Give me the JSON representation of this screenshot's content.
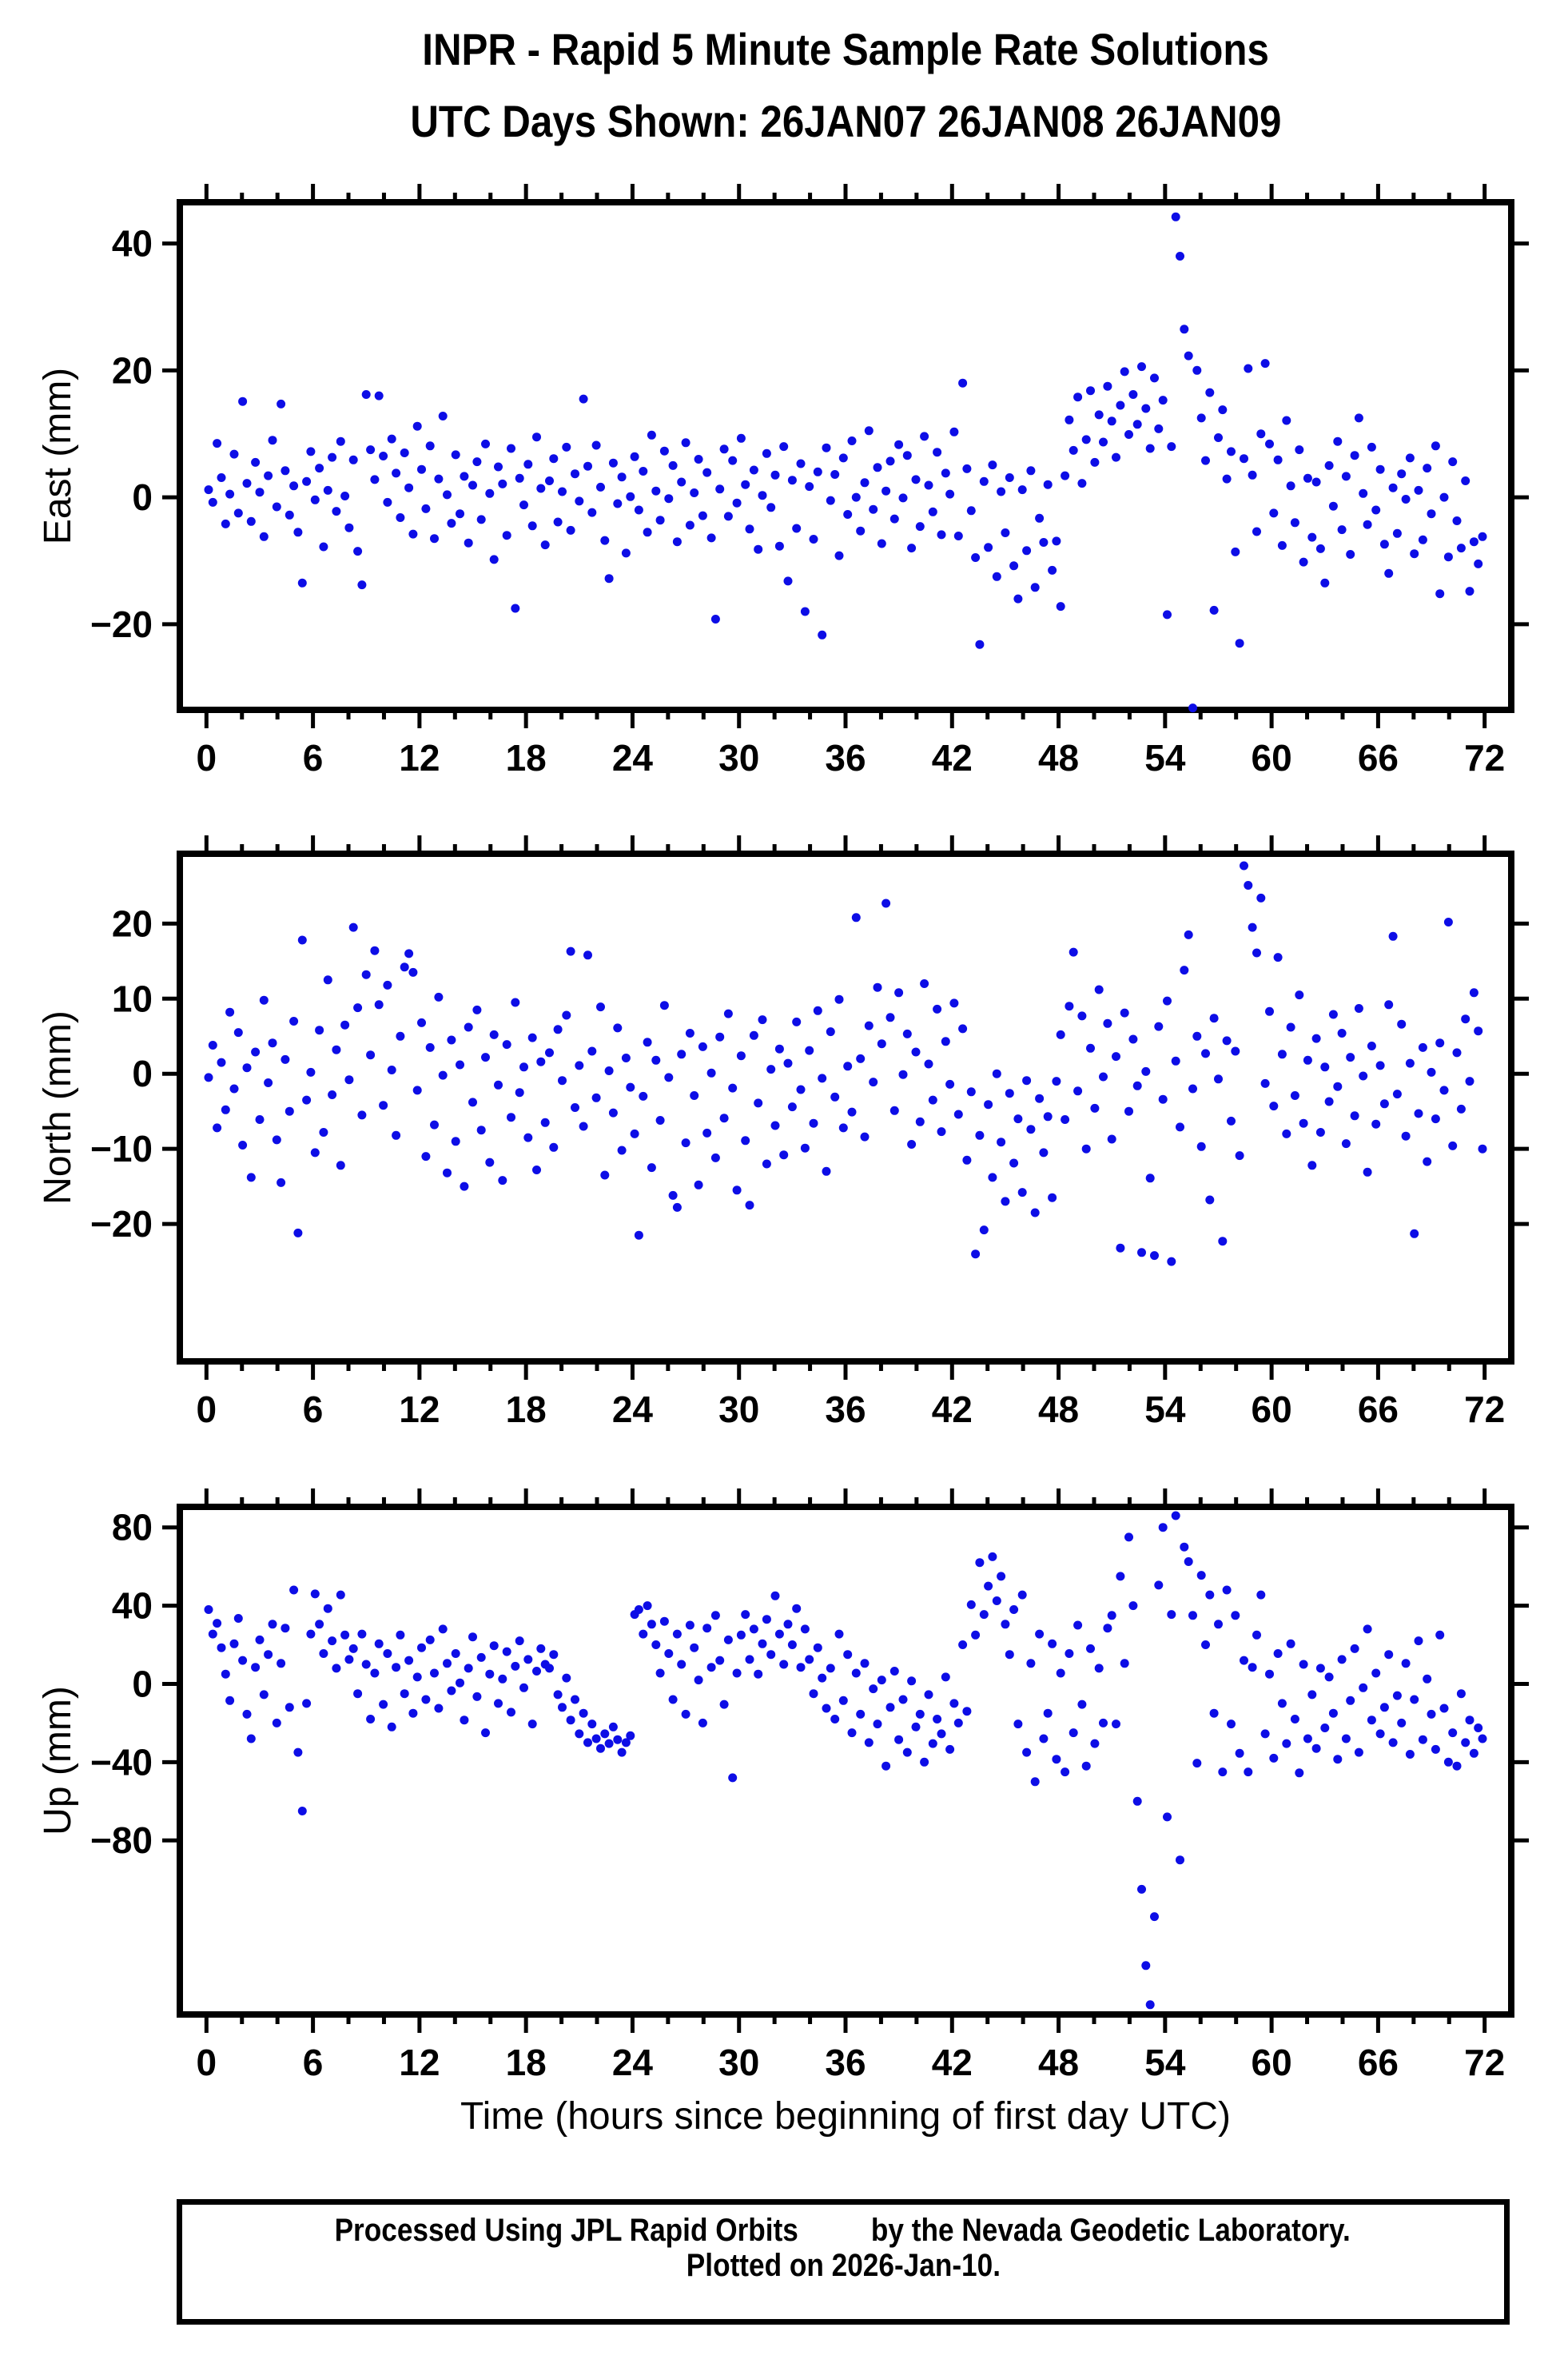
{
  "header": {
    "title": "INPR - Rapid 5 Minute Sample Rate Solutions",
    "subtitle": "UTC Days Shown:  26JAN07 26JAN08 26JAN09"
  },
  "footer": {
    "line1": "Processed Using JPL Rapid Orbits",
    "line2": "by the Nevada Geodetic Laboratory.",
    "line3": "Plotted on 2026-Jan-10."
  },
  "colors": {
    "marker": "#0d0de6",
    "frame": "#000000"
  },
  "chart_data": {
    "type": "scatter",
    "title": "INPR - Rapid 5 Minute Sample Rate Solutions",
    "subtitle": "UTC Days Shown:  26JAN07 26JAN08 26JAN09",
    "xlabel": "Time (hours since beginning of first day UTC)",
    "xlim": [
      -1.5,
      73.5
    ],
    "xticks": [
      0,
      6,
      12,
      18,
      24,
      30,
      36,
      42,
      48,
      54,
      60,
      66,
      72
    ],
    "xtick_minor_step": 2,
    "grid": false,
    "legend": "none",
    "marker_color": "#0d0de6",
    "panels": [
      {
        "name": "East",
        "ylabel": "East (mm)",
        "ylim": [
          -33.5,
          46.5
        ],
        "yticks": [
          -20,
          0,
          20,
          40
        ],
        "x": {
          "start": 0.12,
          "step": 0.24,
          "count": 300
        },
        "y": [
          1.2,
          -0.8,
          8.5,
          3.1,
          -4.2,
          0.5,
          6.8,
          -2.5,
          15.1,
          2.2,
          -3.8,
          5.5,
          0.8,
          -6.2,
          3.4,
          9.0,
          -1.5,
          14.7,
          4.2,
          -2.8,
          1.8,
          -5.5,
          -13.5,
          2.5,
          7.2,
          -0.4,
          4.6,
          -7.8,
          1.1,
          6.3,
          -2.2,
          8.8,
          0.2,
          -4.8,
          5.9,
          -8.5,
          -13.8,
          16.2,
          7.5,
          2.8,
          16.0,
          6.5,
          -0.8,
          9.2,
          3.8,
          -3.2,
          7.0,
          1.5,
          -5.8,
          11.2,
          4.4,
          -1.8,
          8.1,
          -6.5,
          2.9,
          12.8,
          0.4,
          -4.1,
          6.7,
          -2.6,
          3.3,
          -7.2,
          1.9,
          5.6,
          -3.5,
          8.4,
          0.6,
          -9.8,
          4.8,
          2.1,
          -6.0,
          7.7,
          -17.5,
          3.0,
          -1.2,
          5.2,
          -4.5,
          9.5,
          1.4,
          -7.5,
          2.6,
          6.1,
          -3.9,
          0.9,
          7.9,
          -5.2,
          3.7,
          -0.6,
          15.5,
          4.9,
          -2.4,
          8.2,
          1.6,
          -6.8,
          -12.8,
          5.4,
          -1.0,
          3.2,
          -8.8,
          0.1,
          6.4,
          -2.0,
          4.1,
          -5.5,
          9.8,
          1.0,
          -3.6,
          7.3,
          -0.2,
          5.0,
          -7.0,
          2.4,
          8.6,
          -4.4,
          0.7,
          6.0,
          -2.9,
          3.9,
          -6.4,
          -19.2,
          1.3,
          7.6,
          -3.0,
          5.8,
          -0.9,
          9.3,
          2.0,
          -5.0,
          4.3,
          -8.2,
          0.3,
          6.9,
          -1.6,
          3.5,
          -7.7,
          8.0,
          -13.2,
          2.7,
          -4.9,
          5.3,
          -18.0,
          1.7,
          -6.6,
          4.0,
          -21.7,
          7.8,
          -0.5,
          3.6,
          -9.2,
          6.2,
          -2.7,
          8.9,
          0.0,
          -5.3,
          2.3,
          10.5,
          -1.9,
          4.7,
          -7.3,
          1.0,
          5.7,
          -3.4,
          8.3,
          -0.1,
          6.6,
          -8.0,
          2.8,
          -4.6,
          9.6,
          1.9,
          -2.3,
          7.1,
          -5.9,
          3.8,
          0.5,
          10.3,
          -6.1,
          18.0,
          4.5,
          -2.1,
          -9.5,
          -23.2,
          2.5,
          -7.9,
          5.1,
          -12.5,
          0.9,
          -5.6,
          3.1,
          -10.8,
          -16.0,
          1.2,
          -8.4,
          4.2,
          -14.2,
          -3.3,
          -7.1,
          2.0,
          -11.5,
          -6.9,
          -17.2,
          3.4,
          12.2,
          7.4,
          15.8,
          2.2,
          9.1,
          16.8,
          5.5,
          13.0,
          8.7,
          17.5,
          12.0,
          6.3,
          14.5,
          19.8,
          9.9,
          16.2,
          11.5,
          20.6,
          14.0,
          7.7,
          18.8,
          10.8,
          15.3,
          -18.5,
          8.0,
          44.2,
          38.0,
          26.5,
          22.3,
          -33.2,
          20.0,
          12.5,
          5.8,
          16.5,
          -17.8,
          9.4,
          13.8,
          2.9,
          7.2,
          -8.6,
          -23.0,
          6.1,
          20.3,
          3.5,
          -5.4,
          10.0,
          21.1,
          8.4,
          -2.5,
          5.9,
          -7.6,
          12.1,
          1.8,
          -4.0,
          7.5,
          -10.2,
          3.0,
          -6.3,
          2.4,
          -8.1,
          -13.5,
          5.0,
          -1.4,
          8.8,
          -5.1,
          3.3,
          -9.0,
          6.6,
          12.5,
          0.6,
          -4.3,
          7.9,
          -2.0,
          4.4,
          -7.4,
          -12.0,
          1.5,
          -5.7,
          3.7,
          -0.3,
          6.2,
          -8.9,
          1.1,
          -6.7,
          4.6,
          -2.6,
          8.1,
          -15.2,
          0.0,
          -9.4,
          5.6,
          -3.7,
          -8.0,
          2.6,
          -14.8,
          -7.0,
          -10.5,
          -6.2
        ]
      },
      {
        "name": "North",
        "ylabel": "North (mm)",
        "ylim": [
          -38.3,
          29.3
        ],
        "yticks": [
          -20,
          -10,
          0,
          10,
          20
        ],
        "x": {
          "start": 0.12,
          "step": 0.24,
          "count": 300
        },
        "y": [
          -0.5,
          3.8,
          -7.2,
          1.5,
          -4.8,
          8.2,
          -2.0,
          5.5,
          -9.5,
          0.8,
          -13.8,
          2.9,
          -6.1,
          9.8,
          -1.2,
          4.1,
          -8.8,
          -14.5,
          1.9,
          -5.0,
          7.0,
          -21.2,
          17.8,
          -3.5,
          0.2,
          -10.5,
          5.8,
          -7.8,
          12.5,
          -2.8,
          3.2,
          -12.2,
          6.5,
          -0.8,
          19.5,
          8.8,
          -5.5,
          13.2,
          2.5,
          16.4,
          9.2,
          -4.2,
          11.8,
          0.5,
          -8.2,
          5.0,
          14.2,
          16.0,
          13.5,
          -2.2,
          6.8,
          -11.0,
          3.5,
          -6.8,
          10.2,
          -0.2,
          -13.2,
          4.5,
          -9.0,
          1.2,
          -15.0,
          6.2,
          -3.8,
          8.5,
          -7.5,
          2.2,
          -11.8,
          5.2,
          -1.5,
          -14.2,
          3.9,
          -5.8,
          9.5,
          -2.5,
          0.9,
          -8.5,
          4.8,
          -12.8,
          1.6,
          -6.5,
          2.8,
          -9.8,
          5.9,
          -0.9,
          7.8,
          16.3,
          -4.5,
          1.1,
          -7.0,
          15.8,
          3.0,
          -3.2,
          8.9,
          -13.5,
          0.4,
          -5.2,
          6.1,
          -10.2,
          2.1,
          -1.8,
          -8.0,
          -21.5,
          -3.0,
          4.2,
          -12.5,
          1.8,
          -6.2,
          9.1,
          -0.5,
          -16.2,
          -17.8,
          2.6,
          -9.2,
          5.4,
          -2.9,
          -14.8,
          3.6,
          -7.9,
          0.1,
          -11.2,
          4.9,
          -5.9,
          8.0,
          -1.9,
          -15.5,
          2.4,
          -8.9,
          -17.5,
          5.1,
          -3.9,
          7.2,
          -12.0,
          0.6,
          -6.9,
          3.3,
          -10.8,
          1.4,
          -4.4,
          6.9,
          -2.1,
          -9.9,
          3.1,
          -6.6,
          8.4,
          -0.6,
          -13.0,
          5.6,
          -3.1,
          9.9,
          -7.2,
          1.0,
          -5.1,
          20.8,
          2.0,
          -8.4,
          6.4,
          -1.1,
          11.5,
          4.0,
          22.7,
          7.5,
          -4.9,
          10.8,
          -0.1,
          5.3,
          -9.4,
          2.9,
          -6.4,
          12.0,
          1.3,
          -3.5,
          8.6,
          -7.7,
          4.3,
          -1.4,
          9.4,
          -5.4,
          6.0,
          -11.5,
          -2.4,
          -24.0,
          -8.2,
          -20.8,
          -4.1,
          -13.8,
          0.0,
          -9.1,
          -17.0,
          -2.6,
          -11.9,
          -6.0,
          -15.8,
          -0.9,
          -7.4,
          -18.5,
          -3.3,
          -10.5,
          -5.7,
          -16.5,
          -1.0,
          5.2,
          -6.1,
          9.0,
          16.2,
          -2.3,
          7.7,
          -10.0,
          3.4,
          -4.6,
          11.2,
          -0.4,
          6.7,
          -8.7,
          2.3,
          -23.2,
          8.1,
          -5.0,
          4.6,
          -1.6,
          -23.8,
          0.3,
          -13.9,
          -24.2,
          6.3,
          -3.4,
          9.7,
          -25.0,
          1.7,
          -7.1,
          13.8,
          18.5,
          -2.0,
          5.0,
          -9.7,
          2.7,
          -16.8,
          7.4,
          -0.7,
          -22.3,
          4.4,
          -6.3,
          3.0,
          -10.9,
          27.7,
          25.1,
          19.5,
          16.1,
          23.4,
          -1.3,
          8.3,
          -4.3,
          15.5,
          2.6,
          -8.0,
          6.2,
          -2.9,
          10.5,
          -6.6,
          1.8,
          -12.2,
          4.7,
          -7.8,
          0.9,
          -3.7,
          7.9,
          -1.7,
          5.4,
          -9.3,
          2.2,
          -5.6,
          8.7,
          -0.3,
          -13.1,
          3.7,
          -6.7,
          1.1,
          -4.0,
          9.2,
          18.3,
          -2.7,
          6.6,
          -8.3,
          1.4,
          -21.3,
          -5.3,
          3.5,
          -11.7,
          0.2,
          -6.0,
          4.1,
          -2.2,
          20.2,
          -9.6,
          2.8,
          -4.7,
          7.3,
          -1.0,
          10.8,
          5.7,
          -10.0
        ]
      },
      {
        "name": "Up",
        "ylabel": "Up (mm)",
        "ylim": [
          -169.0,
          90.5
        ],
        "yticks": [
          -80,
          -40,
          0,
          40,
          80
        ],
        "x": {
          "start": 0.12,
          "step": 0.24,
          "count": 300
        },
        "y": [
          38.0,
          25.5,
          31.0,
          18.5,
          5.0,
          -8.5,
          20.5,
          33.5,
          12.0,
          -15.5,
          -28.0,
          8.5,
          22.5,
          -5.5,
          15.0,
          30.5,
          -20.0,
          10.5,
          28.5,
          -12.0,
          48.0,
          -35.0,
          -65.0,
          -10.0,
          25.5,
          46.0,
          30.5,
          15.5,
          38.5,
          22.0,
          8.0,
          45.5,
          25.0,
          12.5,
          18.0,
          -5.0,
          25.5,
          10.0,
          -18.0,
          5.5,
          20.5,
          -10.5,
          15.5,
          -22.0,
          8.5,
          25.0,
          -5.0,
          12.0,
          -15.0,
          3.5,
          18.5,
          -8.0,
          22.5,
          5.5,
          -12.5,
          28.0,
          10.5,
          -3.5,
          15.5,
          0.5,
          -18.5,
          8.0,
          24.0,
          -6.5,
          13.5,
          -25.0,
          5.0,
          19.5,
          -10.0,
          2.5,
          16.5,
          -14.5,
          9.0,
          22.0,
          -2.0,
          12.5,
          -20.5,
          6.5,
          18.0,
          10.0,
          8.0,
          15.0,
          -5.5,
          -12.0,
          3.0,
          -18.5,
          -8.0,
          -25.5,
          -15.0,
          -30.0,
          -20.5,
          -28.0,
          -33.0,
          -25.5,
          -30.5,
          -22.0,
          -28.5,
          -35.0,
          -30.0,
          -26.5,
          35.5,
          38.0,
          25.5,
          40.0,
          30.5,
          20.0,
          5.5,
          32.0,
          15.5,
          -8.0,
          25.5,
          10.0,
          -15.5,
          30.0,
          18.5,
          2.0,
          -20.0,
          28.5,
          8.5,
          35.0,
          12.0,
          -10.5,
          22.5,
          -48.0,
          5.5,
          25.0,
          35.5,
          12.5,
          28.0,
          5.0,
          20.5,
          33.0,
          15.0,
          45.0,
          25.5,
          10.0,
          30.5,
          20.0,
          38.5,
          8.5,
          28.0,
          12.5,
          -5.0,
          18.5,
          3.0,
          -12.5,
          8.0,
          -18.0,
          25.5,
          -8.5,
          15.0,
          -25.0,
          5.5,
          -15.5,
          10.5,
          -30.0,
          -2.5,
          -20.5,
          2.0,
          -42.0,
          -12.0,
          6.5,
          -28.5,
          -8.0,
          -35.0,
          1.5,
          -22.0,
          -15.5,
          -40.0,
          -5.5,
          -30.5,
          -18.0,
          -25.5,
          3.5,
          -33.5,
          -10.0,
          -20.0,
          20.0,
          -14.0,
          40.5,
          25.0,
          62.0,
          35.5,
          50.0,
          65.0,
          42.5,
          55.0,
          30.5,
          15.0,
          38.0,
          -20.5,
          45.5,
          -35.0,
          10.5,
          -50.0,
          25.5,
          -28.0,
          -15.0,
          20.5,
          -38.5,
          5.5,
          -45.0,
          15.5,
          -25.0,
          30.0,
          -10.5,
          -42.0,
          18.0,
          -30.5,
          8.0,
          -20.0,
          28.5,
          35.0,
          -20.5,
          55.0,
          10.5,
          75.0,
          40.0,
          -60.0,
          -105.0,
          -144.0,
          -164.0,
          -119.0,
          50.5,
          80.0,
          -68.0,
          35.5,
          86.0,
          -90.0,
          70.0,
          62.5,
          35.0,
          -40.5,
          55.5,
          20.0,
          45.5,
          -15.0,
          30.5,
          -45.0,
          48.0,
          -20.5,
          35.0,
          -35.5,
          12.0,
          -45.0,
          8.5,
          25.0,
          45.5,
          -25.5,
          5.0,
          -38.0,
          15.5,
          -10.0,
          -30.5,
          20.5,
          -18.0,
          -45.5,
          10.0,
          -28.0,
          -5.5,
          -33.0,
          8.0,
          -22.5,
          3.5,
          -15.0,
          -38.5,
          12.5,
          -28.0,
          -8.5,
          18.0,
          -35.0,
          -2.0,
          28.0,
          -18.5,
          5.5,
          -25.5,
          -12.0,
          15.0,
          -30.0,
          -6.0,
          -20.0,
          10.5,
          -36.0,
          -8.0,
          22.0,
          -28.5,
          2.5,
          -15.5,
          -33.5,
          25.0,
          -12.5,
          -40.0,
          -25.0,
          -42.0,
          -5.0,
          -30.0,
          -18.5,
          -35.5,
          -22.5,
          -28.0
        ]
      }
    ]
  }
}
